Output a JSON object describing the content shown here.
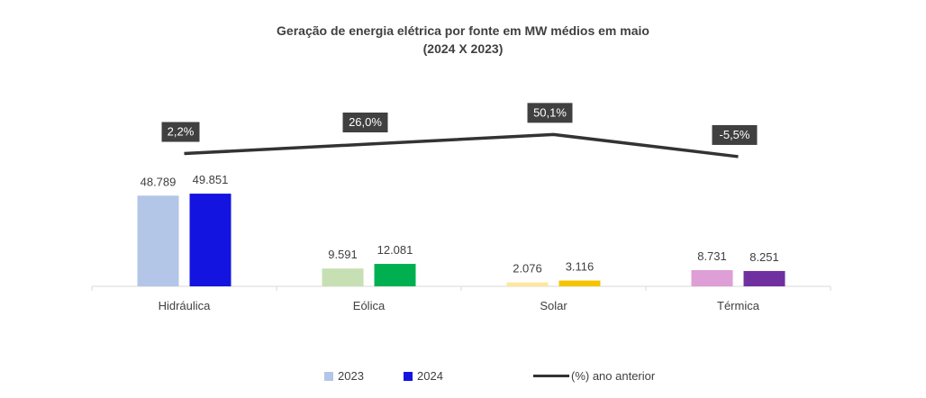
{
  "chart_data": {
    "type": "bar",
    "title": "Geração de energia elétrica por fonte em MW médios em maio",
    "subtitle": "(2024 X 2023)",
    "categories": [
      "Hidráulica",
      "Eólica",
      "Solar",
      "Térmica"
    ],
    "series": [
      {
        "name": "2023",
        "values": [
          48789,
          9591,
          2076,
          8731
        ],
        "labels": [
          "48.789",
          "9.591",
          "2.076",
          "8.731"
        ],
        "colors": [
          "#b4c6e7",
          "#c6e0b4",
          "#ffe699",
          "#de9ed6"
        ]
      },
      {
        "name": "2024",
        "values": [
          49851,
          12081,
          3116,
          8251
        ],
        "labels": [
          "49.851",
          "12.081",
          "3.116",
          "8.251"
        ],
        "colors": [
          "#1414e0",
          "#00b050",
          "#f5c400",
          "#7030a0"
        ]
      }
    ],
    "line_series": {
      "name": "(%) ano anterior",
      "values": [
        2.2,
        26.0,
        50.1,
        -5.5
      ],
      "labels": [
        "2,2%",
        "26,0%",
        "50,1%",
        "-5,5%"
      ],
      "color": "#333333"
    },
    "ylim": [
      0,
      60000
    ],
    "grid": false,
    "legend_position": "bottom"
  },
  "legend": {
    "item_2023": "2023",
    "item_2024": "2024",
    "line_label": "(%) ano anterior"
  }
}
